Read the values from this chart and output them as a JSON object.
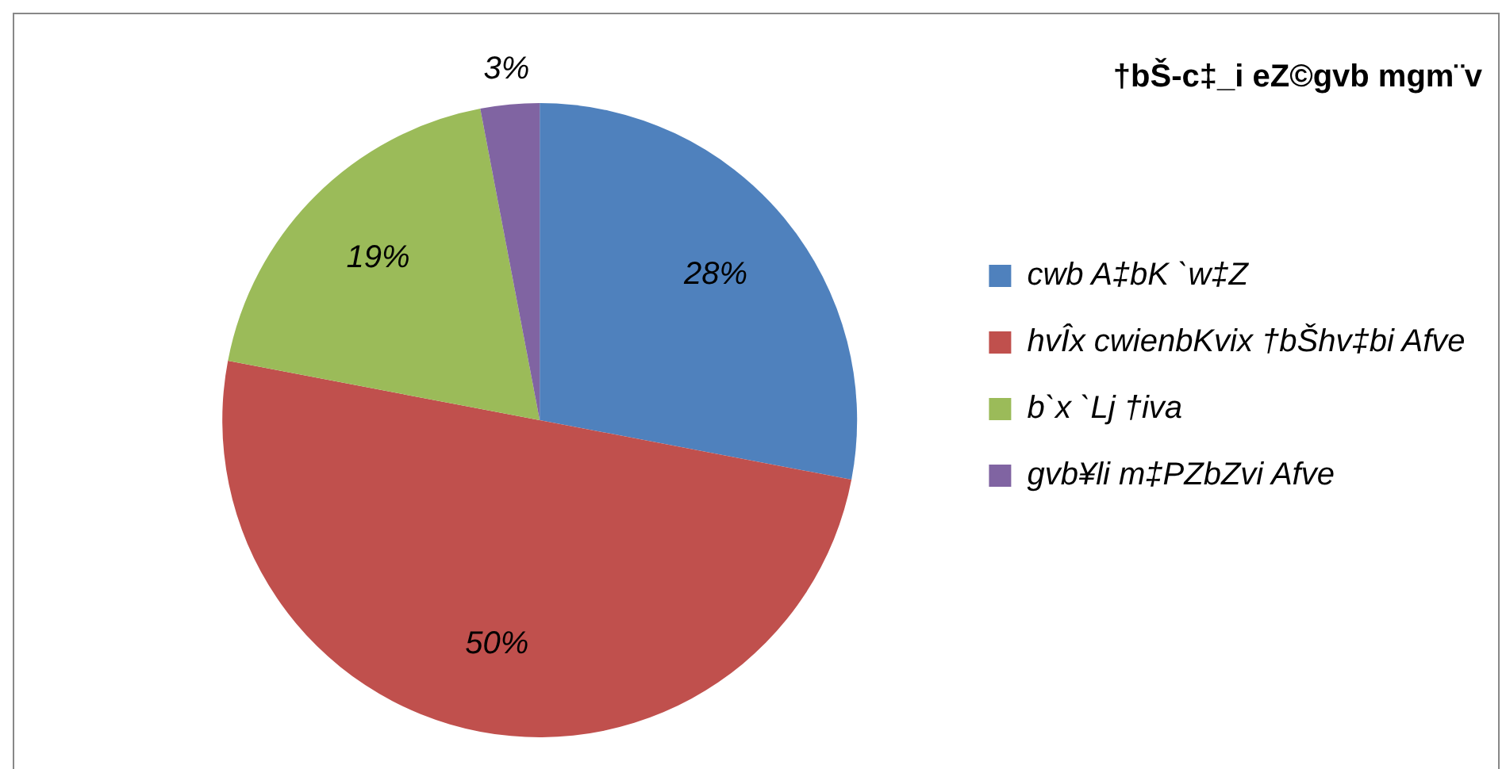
{
  "chart_data": {
    "type": "pie",
    "title": "†bŠ-c‡_i eZ©gvb mgm¨v",
    "categories": [
      "cwb A‡bK `w‡Z",
      "hvÎx cwienbKvix †bŠhv‡bi Afve",
      "b`x `Lj †iva",
      "gvb¥li m‡PZbZvi Afve"
    ],
    "values": [
      28,
      50,
      19,
      3
    ],
    "colors": [
      "#4f81bd",
      "#c0504d",
      "#9bbb59",
      "#8064a2"
    ],
    "value_labels": [
      "28%",
      "50%",
      "19%",
      "3%"
    ],
    "legend": "right"
  }
}
